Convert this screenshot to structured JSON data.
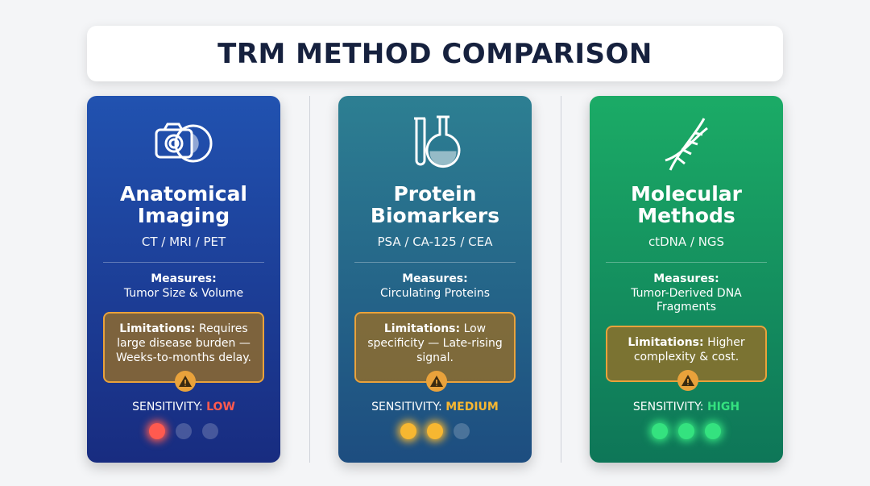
{
  "header": {
    "title": "TRM METHOD COMPARISON"
  },
  "cards": [
    {
      "title": "Anatomical Imaging",
      "subtitle": "CT / MRI / PET",
      "measures_label": "Measures:",
      "measures": "Tumor Size & Volume",
      "limitations_label": "Limitations:",
      "limitations": "Requires large disease burden — Weeks-to-months delay.",
      "sensitivity_label": "SENSITIVITY:",
      "sensitivity": "LOW",
      "sensitivity_color": "#ff5a4f",
      "level": 1
    },
    {
      "title": "Protein Biomarkers",
      "subtitle": "PSA / CA-125 / CEA",
      "measures_label": "Measures:",
      "measures": "Circulating Proteins",
      "limitations_label": "Limitations:",
      "limitations": "Low specificity — Late-rising signal.",
      "sensitivity_label": "SENSITIVITY:",
      "sensitivity": "MEDIUM",
      "sensitivity_color": "#f7b731",
      "level": 2
    },
    {
      "title": "Molecular Methods",
      "subtitle": "ctDNA / NGS",
      "measures_label": "Measures:",
      "measures": "Tumor-Derived DNA Fragments",
      "limitations_label": "Limitations:",
      "limitations": "Higher complexity & cost.",
      "sensitivity_label": "SENSITIVITY:",
      "sensitivity": "HIGH",
      "sensitivity_color": "#34e27f",
      "level": 3
    }
  ]
}
